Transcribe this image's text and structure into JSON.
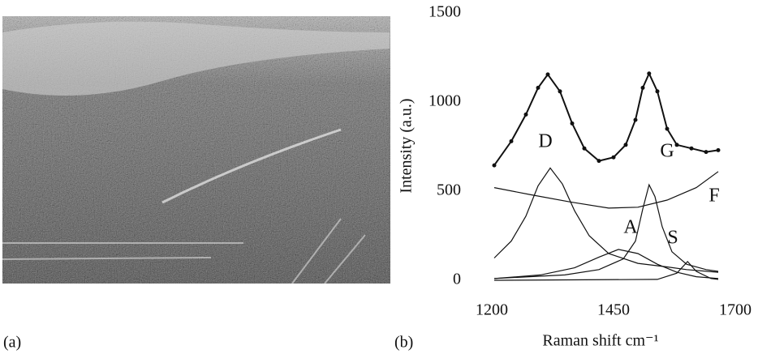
{
  "panels": [
    "(a)",
    "(b)"
  ],
  "chart_data": {
    "type": "line",
    "xlabel": "Raman shift cm⁻¹",
    "ylabel": "Intensity (a.u.)",
    "xlim": [
      1200,
      1700
    ],
    "xticks": [
      1200,
      1450,
      1700
    ],
    "ylim": [
      0,
      1500
    ],
    "yticks": [
      0,
      500,
      1000,
      1500
    ],
    "annotations": [
      "D",
      "G",
      "F",
      "A",
      "S"
    ],
    "series": [
      {
        "color": "#111111",
        "markers": true,
        "x": [
          1205,
          1240,
          1270,
          1295,
          1315,
          1340,
          1365,
          1390,
          1420,
          1450,
          1475,
          1495,
          1510,
          1523,
          1540,
          1560,
          1580,
          1610,
          1640,
          1665
        ],
        "values": [
          645,
          780,
          930,
          1080,
          1155,
          1060,
          880,
          740,
          670,
          690,
          760,
          900,
          1080,
          1160,
          1060,
          850,
          760,
          740,
          720,
          730
        ]
      },
      {
        "color": "#111111",
        "x": [
          1205,
          1240,
          1270,
          1295,
          1320,
          1345,
          1370,
          1400,
          1440,
          1500,
          1560,
          1600,
          1665
        ],
        "values": [
          125,
          220,
          360,
          530,
          630,
          540,
          390,
          250,
          150,
          95,
          75,
          60,
          45
        ]
      },
      {
        "color": "#111111",
        "x": [
          1205,
          1280,
          1360,
          1440,
          1500,
          1560,
          1620,
          1665
        ],
        "values": [
          520,
          480,
          440,
          405,
          410,
          450,
          520,
          610
        ]
      },
      {
        "color": "#111111",
        "x": [
          1205,
          1350,
          1420,
          1470,
          1495,
          1510,
          1523,
          1535,
          1550,
          1570,
          1600,
          1640,
          1665
        ],
        "values": [
          10,
          30,
          60,
          120,
          220,
          400,
          536,
          470,
          300,
          160,
          90,
          60,
          50
        ]
      },
      {
        "color": "#111111",
        "x": [
          1205,
          1300,
          1370,
          1420,
          1460,
          1500,
          1540,
          1580,
          1620,
          1665
        ],
        "values": [
          10,
          30,
          70,
          130,
          173,
          150,
          90,
          45,
          20,
          10
        ]
      },
      {
        "color": "#111111",
        "x": [
          1205,
          1540,
          1580,
          1602,
          1620,
          1650,
          1665
        ],
        "values": [
          0,
          5,
          40,
          105,
          50,
          10,
          5
        ]
      }
    ]
  }
}
